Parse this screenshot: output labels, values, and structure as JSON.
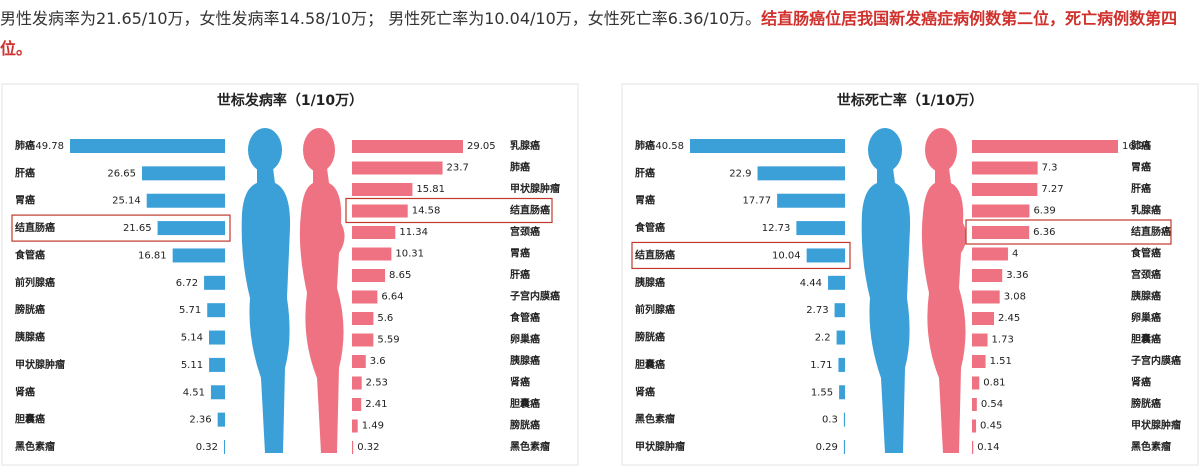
{
  "header": {
    "text": "男性发病率为21.65/10万，女性发病率14.58/10万； 男性死亡率为10.04/10万，女性死亡率6.36/10万。",
    "highlight": "结直肠癌位居我国新发癌症病例数第二位，死亡病例数第四位。"
  },
  "chart_data": [
    {
      "type": "bar",
      "title": "世标发病率（1/10万）",
      "male": {
        "color": "#3ba0d8",
        "highlight": 3,
        "categories": [
          "肺癌",
          "肝癌",
          "胃癌",
          "结直肠癌",
          "食管癌",
          "前列腺癌",
          "膀胱癌",
          "胰腺癌",
          "甲状腺肿瘤",
          "肾癌",
          "胆囊癌",
          "黑色素瘤"
        ],
        "values": [
          49.78,
          26.65,
          25.14,
          21.65,
          16.81,
          6.72,
          5.71,
          5.14,
          5.11,
          4.51,
          2.36,
          0.32
        ]
      },
      "female": {
        "color": "#ef7282",
        "highlight": 3,
        "categories": [
          "乳腺癌",
          "肺癌",
          "甲状腺肿瘤",
          "结直肠癌",
          "宫颈癌",
          "胃癌",
          "肝癌",
          "子宫内膜癌",
          "食管癌",
          "卵巢癌",
          "胰腺癌",
          "肾癌",
          "胆囊癌",
          "膀胱癌",
          "黑色素瘤"
        ],
        "values": [
          29.05,
          23.7,
          15.81,
          14.58,
          11.34,
          10.31,
          8.65,
          6.64,
          5.6,
          5.59,
          3.6,
          2.53,
          2.41,
          1.49,
          0.32
        ]
      }
    },
    {
      "type": "bar",
      "title": "世标死亡率（1/10万）",
      "male": {
        "color": "#3ba0d8",
        "highlight": 4,
        "categories": [
          "肺癌",
          "肝癌",
          "胃癌",
          "食管癌",
          "结直肠癌",
          "胰腺癌",
          "前列腺癌",
          "膀胱癌",
          "胆囊癌",
          "肾癌",
          "黑色素瘤",
          "甲状腺肿瘤"
        ],
        "values": [
          40.58,
          22.9,
          17.77,
          12.73,
          10.04,
          4.44,
          2.73,
          2.2,
          1.71,
          1.55,
          0.3,
          0.29
        ]
      },
      "female": {
        "color": "#ef7282",
        "highlight": 4,
        "categories": [
          "肺癌",
          "胃癌",
          "肝癌",
          "乳腺癌",
          "结直肠癌",
          "食管癌",
          "宫颈癌",
          "胰腺癌",
          "卵巢癌",
          "胆囊癌",
          "子宫内膜癌",
          "肾癌",
          "膀胱癌",
          "甲状腺肿瘤",
          "黑色素瘤"
        ],
        "values": [
          16.24,
          7.3,
          7.27,
          6.39,
          6.36,
          4,
          3.36,
          3.08,
          2.45,
          1.73,
          1.51,
          0.81,
          0.54,
          0.45,
          0.14
        ]
      }
    }
  ]
}
